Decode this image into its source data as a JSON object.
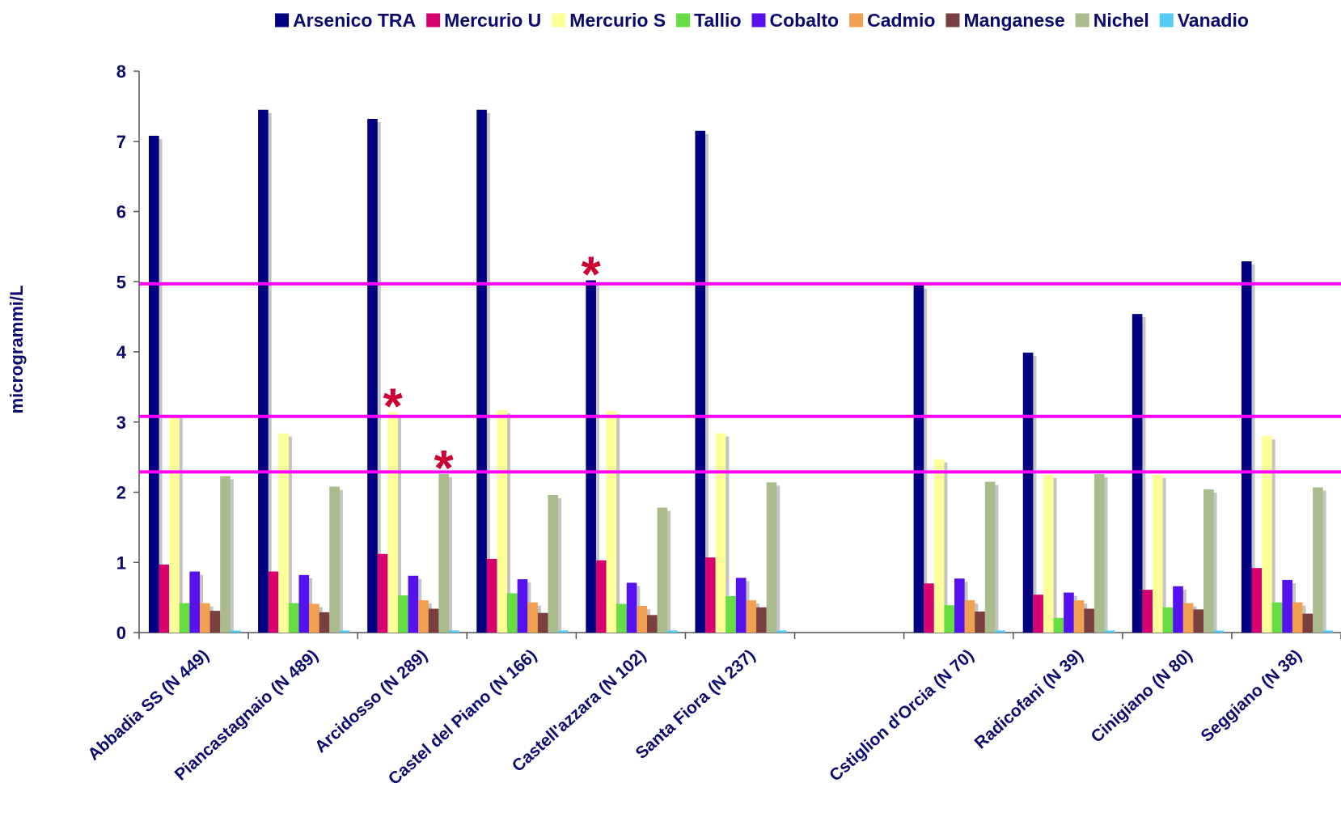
{
  "chart_data": {
    "type": "bar",
    "title": "",
    "xlabel": "",
    "ylabel": "microgrammi/L",
    "ylim": [
      0,
      8
    ],
    "yticks": [
      0,
      1,
      2,
      3,
      4,
      5,
      6,
      7,
      8
    ],
    "legend_position": "top",
    "grid": false,
    "categories": [
      "Abbadia SS (N 449)",
      "Piancastagnaio (N 489)",
      "Arcidosso (N 289)",
      "Castel del Piano (N 166)",
      "Castell'azzara (N 102)",
      "Santa Fiora (N 237)",
      "",
      "Cstiglion d'Orcia (N 70)",
      "Radicofani (N 39)",
      "Cinigiano (N 80)",
      "Seggiano (N 38)"
    ],
    "series": [
      {
        "name": "Arsenico TRA",
        "color": "#000080",
        "values": [
          7.08,
          7.45,
          7.32,
          7.45,
          5.02,
          7.15,
          null,
          4.95,
          3.99,
          4.54,
          5.29
        ]
      },
      {
        "name": "Mercurio U",
        "color": "#d6006f",
        "values": [
          0.97,
          0.87,
          1.12,
          1.05,
          1.03,
          1.07,
          null,
          0.7,
          0.54,
          0.61,
          0.92
        ]
      },
      {
        "name": "Mercurio S",
        "color": "#ffff99",
        "values": [
          3.1,
          2.84,
          3.14,
          3.17,
          3.16,
          2.84,
          null,
          2.47,
          2.25,
          2.25,
          2.8
        ]
      },
      {
        "name": "Tallio",
        "color": "#66dd44",
        "values": [
          0.42,
          0.42,
          0.53,
          0.56,
          0.41,
          0.52,
          null,
          0.39,
          0.21,
          0.36,
          0.43
        ]
      },
      {
        "name": "Cobalto",
        "color": "#5511ee",
        "values": [
          0.87,
          0.82,
          0.81,
          0.76,
          0.71,
          0.78,
          null,
          0.77,
          0.57,
          0.66,
          0.75
        ]
      },
      {
        "name": "Cadmio",
        "color": "#f0a050",
        "values": [
          0.42,
          0.41,
          0.46,
          0.43,
          0.38,
          0.46,
          null,
          0.46,
          0.46,
          0.42,
          0.43
        ]
      },
      {
        "name": "Manganese",
        "color": "#7a4040",
        "values": [
          0.31,
          0.29,
          0.34,
          0.28,
          0.25,
          0.36,
          null,
          0.3,
          0.34,
          0.33,
          0.27
        ]
      },
      {
        "name": "Nichel",
        "color": "#aabb8c",
        "values": [
          2.23,
          2.08,
          2.26,
          1.96,
          1.78,
          2.14,
          null,
          2.15,
          2.26,
          2.04,
          2.07
        ]
      },
      {
        "name": "Vanadio",
        "color": "#55ccf5",
        "values": [
          0.03,
          0.03,
          0.03,
          0.03,
          0.03,
          0.03,
          null,
          0.03,
          0.03,
          0.03,
          0.03
        ]
      }
    ],
    "reference_lines": [
      {
        "value": 4.97,
        "color": "#ff00ff"
      },
      {
        "value": 3.08,
        "color": "#ff00ff"
      },
      {
        "value": 2.29,
        "color": "#ff00ff"
      }
    ],
    "annotations": [
      {
        "text": "*",
        "category_index": 4,
        "series_index": 0
      },
      {
        "text": "*",
        "category_index": 2,
        "series_index": 2
      },
      {
        "text": "*",
        "category_index": 2,
        "series_index": 7
      }
    ]
  }
}
